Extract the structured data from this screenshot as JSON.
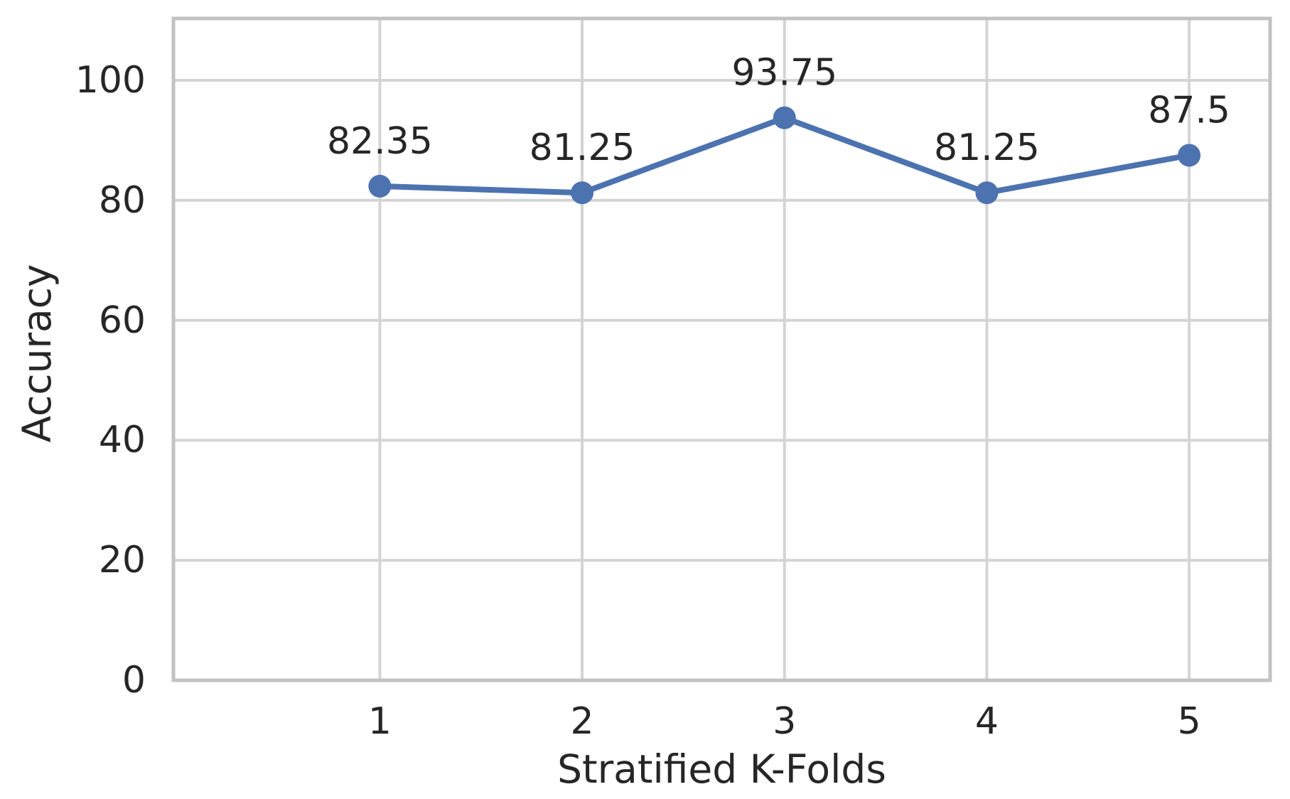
{
  "chart_data": {
    "type": "line",
    "title": "",
    "xlabel": "Stratified K-Folds",
    "ylabel": "Accuracy",
    "x": [
      1,
      2,
      3,
      4,
      5
    ],
    "values": [
      82.35,
      81.25,
      93.75,
      81.25,
      87.5
    ],
    "point_labels": [
      "82.35",
      "81.25",
      "93.75",
      "81.25",
      "87.5"
    ],
    "xtick_labels": [
      "1",
      "2",
      "3",
      "4",
      "5"
    ],
    "ytick_values": [
      0,
      20,
      40,
      60,
      80,
      100
    ],
    "ytick_labels": [
      "0",
      "20",
      "40",
      "60",
      "80",
      "100"
    ],
    "xlim": [
      -0.02,
      5.4
    ],
    "ylim": [
      0,
      110.3
    ],
    "grid": true,
    "legend": "none",
    "colors": {
      "line": "#4C72B0",
      "marker": "#4C72B0",
      "grid": "#d4d4d4",
      "spine": "#c2c2c2",
      "text": "#262626"
    }
  }
}
